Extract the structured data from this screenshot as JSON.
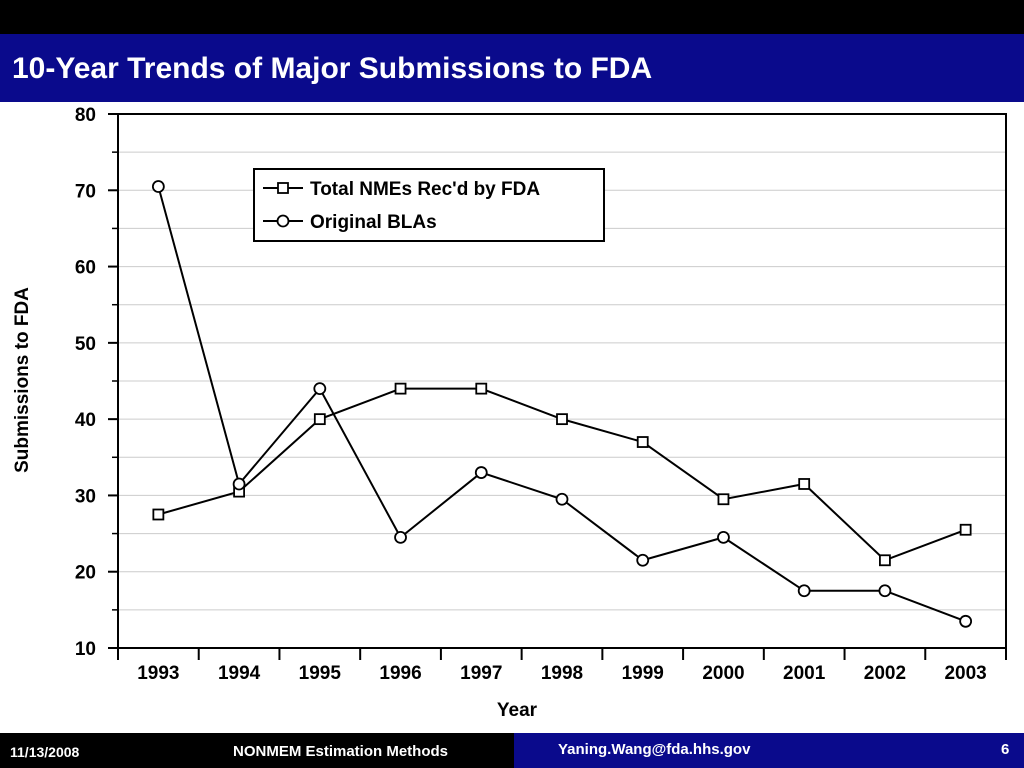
{
  "slide": {
    "title": "10-Year Trends of Major Submissions to FDA"
  },
  "footer": {
    "date": "11/13/2008",
    "center": "NONMEM Estimation Methods",
    "email": "Yaning.Wang@fda.hhs.gov",
    "page": "6"
  },
  "colors": {
    "title_bar": "#0a0a8c",
    "footer_bg": "#000000",
    "text_on_dark": "#ffffff",
    "line": "#000000",
    "gridline": "#cccccc"
  },
  "chart_data": {
    "type": "line",
    "xlabel": "Year",
    "ylabel": "Submissions to FDA",
    "categories": [
      "1993",
      "1994",
      "1995",
      "1996",
      "1997",
      "1998",
      "1999",
      "2000",
      "2001",
      "2002",
      "2003"
    ],
    "ylim": [
      10,
      80
    ],
    "yticks": [
      10,
      20,
      30,
      40,
      50,
      60,
      70,
      80
    ],
    "grid": true,
    "legend_position": "top-left",
    "series": [
      {
        "name": "Total NMEs Rec'd by FDA",
        "marker": "square",
        "values": [
          27.5,
          30.5,
          40,
          44,
          44,
          40,
          37,
          29.5,
          31.5,
          21.5,
          25.5
        ]
      },
      {
        "name": "Original BLAs",
        "marker": "circle",
        "values": [
          70.5,
          31.5,
          44,
          24.5,
          33,
          29.5,
          21.5,
          24.5,
          17.5,
          17.5,
          13.5
        ]
      }
    ]
  }
}
